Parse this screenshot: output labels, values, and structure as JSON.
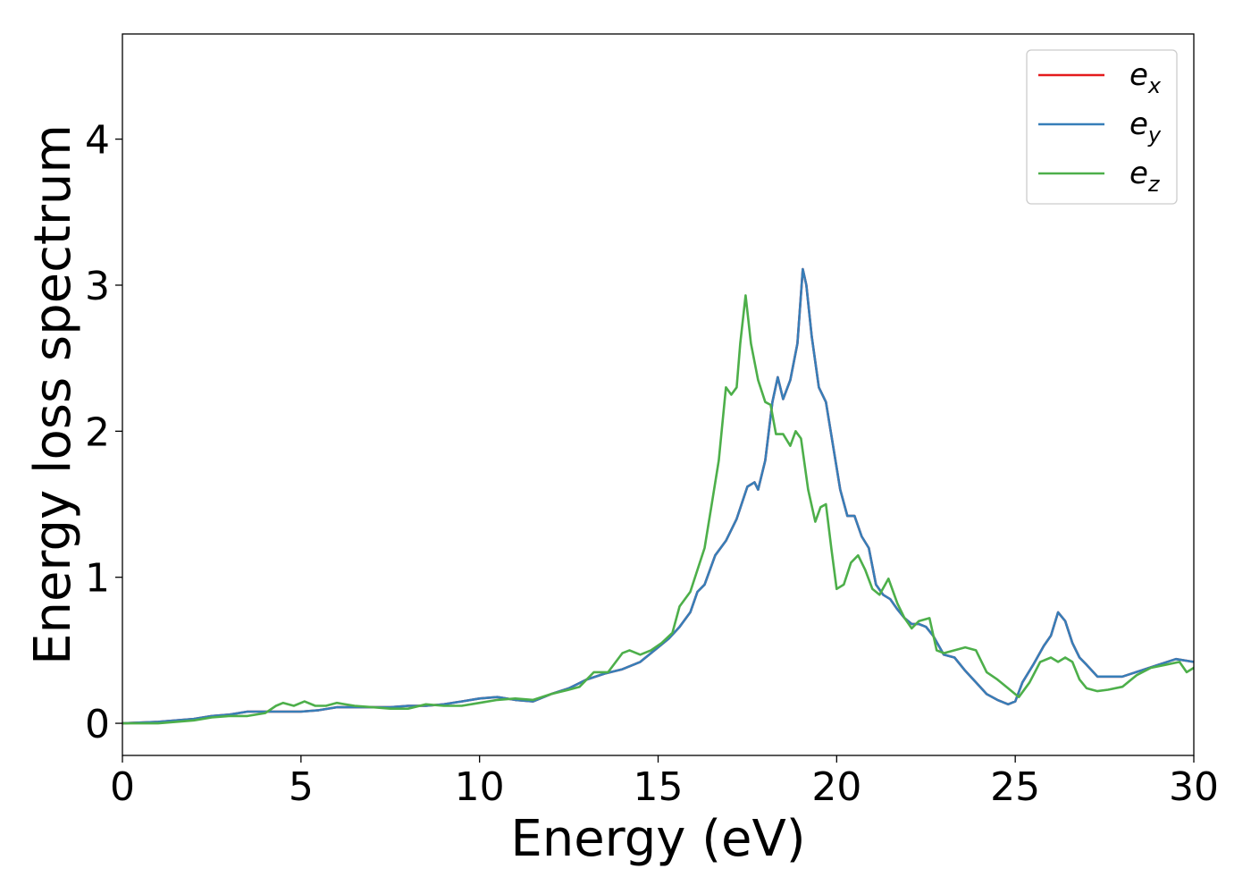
{
  "chart_data": {
    "type": "line",
    "title": "",
    "xlabel": "Energy (eV)",
    "ylabel": "Energy loss spectrum",
    "xlim": [
      0,
      30
    ],
    "ylim": [
      -0.22,
      4.72
    ],
    "xticks": [
      0,
      5,
      10,
      15,
      20,
      25,
      30
    ],
    "xtick_labels": [
      "0",
      "5",
      "10",
      "15",
      "20",
      "25",
      "30"
    ],
    "yticks": [
      0,
      1,
      2,
      3,
      4
    ],
    "ytick_labels": [
      "0",
      "1",
      "2",
      "3",
      "4"
    ],
    "grid": false,
    "legend_position": "top-right",
    "series": [
      {
        "name": "e_x",
        "label_base": "e",
        "label_sub": "x",
        "color": "#e41a1c",
        "x": [
          0,
          1,
          1.5,
          2,
          2.5,
          3,
          3.5,
          4,
          4.5,
          5,
          5.5,
          6,
          6.5,
          7,
          7.5,
          8,
          8.5,
          9,
          9.5,
          10,
          10.5,
          11,
          11.5,
          12,
          12.5,
          13,
          13.5,
          14,
          14.5,
          15,
          15.3,
          15.6,
          15.9,
          16.1,
          16.3,
          16.6,
          16.9,
          17.2,
          17.5,
          17.7,
          17.8,
          18.0,
          18.2,
          18.35,
          18.5,
          18.7,
          18.9,
          19.05,
          19.15,
          19.3,
          19.5,
          19.7,
          19.9,
          20.1,
          20.3,
          20.5,
          20.7,
          20.9,
          21.1,
          21.3,
          21.5,
          21.7,
          21.9,
          22.1,
          22.3,
          22.5,
          22.7,
          23.0,
          23.3,
          23.6,
          23.9,
          24.2,
          24.5,
          24.8,
          25.0,
          25.2,
          25.5,
          25.8,
          26.0,
          26.2,
          26.4,
          26.6,
          26.8,
          27.0,
          27.3,
          27.6,
          28.0,
          28.5,
          29.0,
          29.5,
          30
        ],
        "y": [
          0,
          0.01,
          0.02,
          0.03,
          0.05,
          0.06,
          0.08,
          0.08,
          0.08,
          0.08,
          0.09,
          0.11,
          0.11,
          0.11,
          0.11,
          0.12,
          0.12,
          0.13,
          0.15,
          0.17,
          0.18,
          0.16,
          0.15,
          0.2,
          0.24,
          0.3,
          0.34,
          0.37,
          0.42,
          0.52,
          0.58,
          0.66,
          0.76,
          0.9,
          0.95,
          1.15,
          1.25,
          1.4,
          1.62,
          1.65,
          1.6,
          1.8,
          2.2,
          2.37,
          2.22,
          2.35,
          2.6,
          3.11,
          3.0,
          2.65,
          2.3,
          2.2,
          1.9,
          1.6,
          1.42,
          1.42,
          1.28,
          1.2,
          0.95,
          0.88,
          0.85,
          0.78,
          0.72,
          0.68,
          0.68,
          0.66,
          0.6,
          0.47,
          0.45,
          0.36,
          0.28,
          0.2,
          0.16,
          0.13,
          0.15,
          0.28,
          0.4,
          0.53,
          0.6,
          0.76,
          0.7,
          0.55,
          0.45,
          0.4,
          0.32,
          0.32,
          0.32,
          0.36,
          0.4,
          0.44,
          0.42
        ]
      },
      {
        "name": "e_y",
        "label_base": "e",
        "label_sub": "y",
        "color": "#377eb8",
        "x": [
          0,
          1,
          1.5,
          2,
          2.5,
          3,
          3.5,
          4,
          4.5,
          5,
          5.5,
          6,
          6.5,
          7,
          7.5,
          8,
          8.5,
          9,
          9.5,
          10,
          10.5,
          11,
          11.5,
          12,
          12.5,
          13,
          13.5,
          14,
          14.5,
          15,
          15.3,
          15.6,
          15.9,
          16.1,
          16.3,
          16.6,
          16.9,
          17.2,
          17.5,
          17.7,
          17.8,
          18.0,
          18.2,
          18.35,
          18.5,
          18.7,
          18.9,
          19.05,
          19.15,
          19.3,
          19.5,
          19.7,
          19.9,
          20.1,
          20.3,
          20.5,
          20.7,
          20.9,
          21.1,
          21.3,
          21.5,
          21.7,
          21.9,
          22.1,
          22.3,
          22.5,
          22.7,
          23.0,
          23.3,
          23.6,
          23.9,
          24.2,
          24.5,
          24.8,
          25.0,
          25.2,
          25.5,
          25.8,
          26.0,
          26.2,
          26.4,
          26.6,
          26.8,
          27.0,
          27.3,
          27.6,
          28.0,
          28.5,
          29.0,
          29.5,
          30
        ],
        "y": [
          0,
          0.01,
          0.02,
          0.03,
          0.05,
          0.06,
          0.08,
          0.08,
          0.08,
          0.08,
          0.09,
          0.11,
          0.11,
          0.11,
          0.11,
          0.12,
          0.12,
          0.13,
          0.15,
          0.17,
          0.18,
          0.16,
          0.15,
          0.2,
          0.24,
          0.3,
          0.34,
          0.37,
          0.42,
          0.52,
          0.58,
          0.66,
          0.76,
          0.9,
          0.95,
          1.15,
          1.25,
          1.4,
          1.62,
          1.65,
          1.6,
          1.8,
          2.2,
          2.37,
          2.22,
          2.35,
          2.6,
          3.11,
          3.0,
          2.65,
          2.3,
          2.2,
          1.9,
          1.6,
          1.42,
          1.42,
          1.28,
          1.2,
          0.95,
          0.88,
          0.85,
          0.78,
          0.72,
          0.68,
          0.68,
          0.66,
          0.6,
          0.47,
          0.45,
          0.36,
          0.28,
          0.2,
          0.16,
          0.13,
          0.15,
          0.28,
          0.4,
          0.53,
          0.6,
          0.76,
          0.7,
          0.55,
          0.45,
          0.4,
          0.32,
          0.32,
          0.32,
          0.36,
          0.4,
          0.44,
          0.42
        ]
      },
      {
        "name": "e_z",
        "label_base": "e",
        "label_sub": "z",
        "color": "#4daf4a",
        "x": [
          0,
          1,
          1.5,
          2,
          2.5,
          3,
          3.5,
          4,
          4.3,
          4.5,
          4.8,
          5.1,
          5.4,
          5.7,
          6.0,
          6.5,
          7,
          7.5,
          8,
          8.5,
          9,
          9.5,
          10,
          10.5,
          11,
          11.5,
          12,
          12.5,
          12.8,
          13.2,
          13.6,
          14.0,
          14.2,
          14.5,
          14.8,
          15.1,
          15.4,
          15.6,
          15.9,
          16.1,
          16.3,
          16.5,
          16.7,
          16.9,
          17.05,
          17.2,
          17.3,
          17.45,
          17.6,
          17.8,
          18.0,
          18.15,
          18.3,
          18.5,
          18.7,
          18.85,
          19.0,
          19.2,
          19.4,
          19.55,
          19.7,
          19.85,
          20.0,
          20.2,
          20.4,
          20.6,
          20.8,
          21.0,
          21.2,
          21.45,
          21.7,
          21.9,
          22.1,
          22.3,
          22.6,
          22.8,
          23.0,
          23.3,
          23.6,
          23.9,
          24.2,
          24.5,
          24.8,
          25.1,
          25.4,
          25.7,
          26.0,
          26.2,
          26.4,
          26.6,
          26.8,
          27.0,
          27.3,
          27.6,
          28.0,
          28.4,
          28.8,
          29.2,
          29.6,
          29.8,
          30
        ],
        "y": [
          0,
          0.0,
          0.01,
          0.02,
          0.04,
          0.05,
          0.05,
          0.07,
          0.12,
          0.14,
          0.12,
          0.15,
          0.12,
          0.12,
          0.14,
          0.12,
          0.11,
          0.1,
          0.1,
          0.13,
          0.12,
          0.12,
          0.14,
          0.16,
          0.17,
          0.16,
          0.2,
          0.23,
          0.25,
          0.35,
          0.35,
          0.48,
          0.5,
          0.47,
          0.5,
          0.55,
          0.62,
          0.8,
          0.9,
          1.05,
          1.2,
          1.5,
          1.8,
          2.3,
          2.25,
          2.3,
          2.6,
          2.93,
          2.6,
          2.35,
          2.2,
          2.18,
          1.98,
          1.98,
          1.9,
          2.0,
          1.95,
          1.6,
          1.38,
          1.48,
          1.5,
          1.2,
          0.92,
          0.95,
          1.1,
          1.15,
          1.05,
          0.92,
          0.88,
          0.99,
          0.82,
          0.72,
          0.65,
          0.7,
          0.72,
          0.5,
          0.48,
          0.5,
          0.52,
          0.5,
          0.35,
          0.3,
          0.24,
          0.18,
          0.28,
          0.42,
          0.45,
          0.42,
          0.45,
          0.42,
          0.3,
          0.24,
          0.22,
          0.23,
          0.25,
          0.33,
          0.38,
          0.4,
          0.42,
          0.35,
          0.38
        ]
      }
    ]
  }
}
